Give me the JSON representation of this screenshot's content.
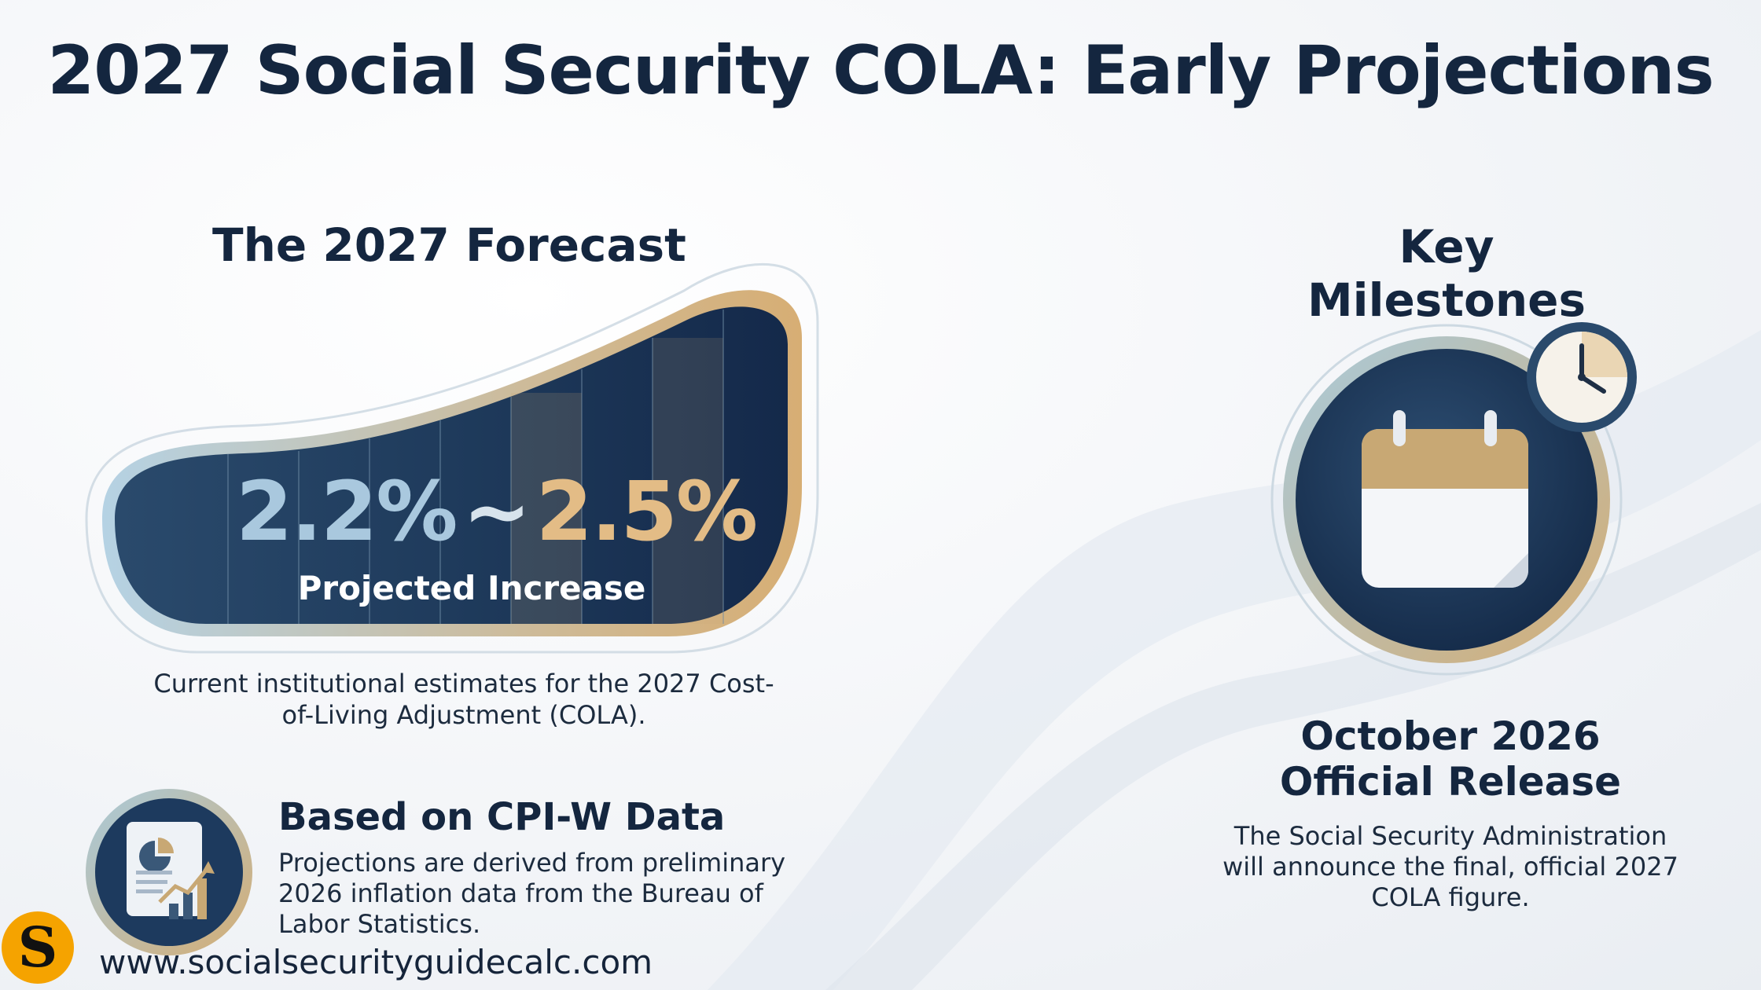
{
  "title": "2027 Social Security COLA: Early Projections",
  "forecast": {
    "heading": "The 2027 Forecast",
    "range_low": "2.2%",
    "range_separator": "~",
    "range_high": "2.5%",
    "label": "Projected Increase",
    "description": "Current institutional estimates for the 2027 Cost-of-Living Adjustment (COLA)."
  },
  "milestones": {
    "heading": "Key Milestones",
    "release_title_line1": "October 2026",
    "release_title_line2": "Official Release",
    "description": "The Social Security Administration will announce the final, official 2027 COLA figure."
  },
  "cpi": {
    "title": "Based on CPI-W Data",
    "description": "Projections are derived from preliminary 2026 inflation data from the Bureau of Labor Statistics."
  },
  "footer": {
    "logo_letter": "S",
    "url": "www.socialsecurityguidecalc.com"
  },
  "colors": {
    "navy": "#14263f",
    "gold": "#d9b27a",
    "light_blue": "#a9c8de",
    "logo_orange": "#f5a300"
  },
  "icons": [
    "calendar-icon",
    "clock-icon",
    "report-chart-icon"
  ]
}
